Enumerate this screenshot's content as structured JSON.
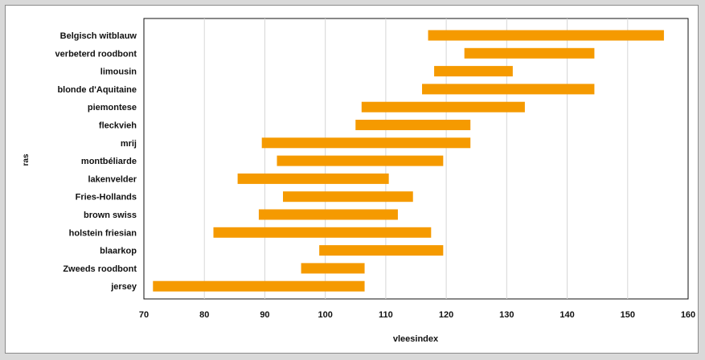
{
  "chart_data": {
    "type": "bar",
    "orientation": "horizontal-range",
    "title": "",
    "xlabel": "vleesindex",
    "ylabel": "ras",
    "xlim": [
      70,
      160
    ],
    "xticks": [
      70,
      80,
      90,
      100,
      110,
      120,
      130,
      140,
      150,
      160
    ],
    "grid": "vertical",
    "legend": "none",
    "categories": [
      "Belgisch witblauw",
      "verbeterd roodbont",
      "limousin",
      "blonde d'Aquitaine",
      "piemontese",
      "fleckvieh",
      "mrij",
      "montbéliarde",
      "lakenvelder",
      "Fries-Hollands",
      "brown swiss",
      "holstein friesian",
      "blaarkop",
      "Zweeds roodbont",
      "jersey"
    ],
    "ranges": [
      [
        117,
        156
      ],
      [
        123,
        144.5
      ],
      [
        118,
        131
      ],
      [
        116,
        144.5
      ],
      [
        106,
        133
      ],
      [
        105,
        124
      ],
      [
        89.5,
        124
      ],
      [
        92,
        119.5
      ],
      [
        85.5,
        110.5
      ],
      [
        93,
        114.5
      ],
      [
        89,
        112
      ],
      [
        81.5,
        117.5
      ],
      [
        99,
        119.5
      ],
      [
        96,
        106.5
      ],
      [
        71.5,
        106.5
      ]
    ],
    "colors": {
      "bar": "#f59a00",
      "grid": "#d6d6d6",
      "axis": "#111111"
    }
  }
}
